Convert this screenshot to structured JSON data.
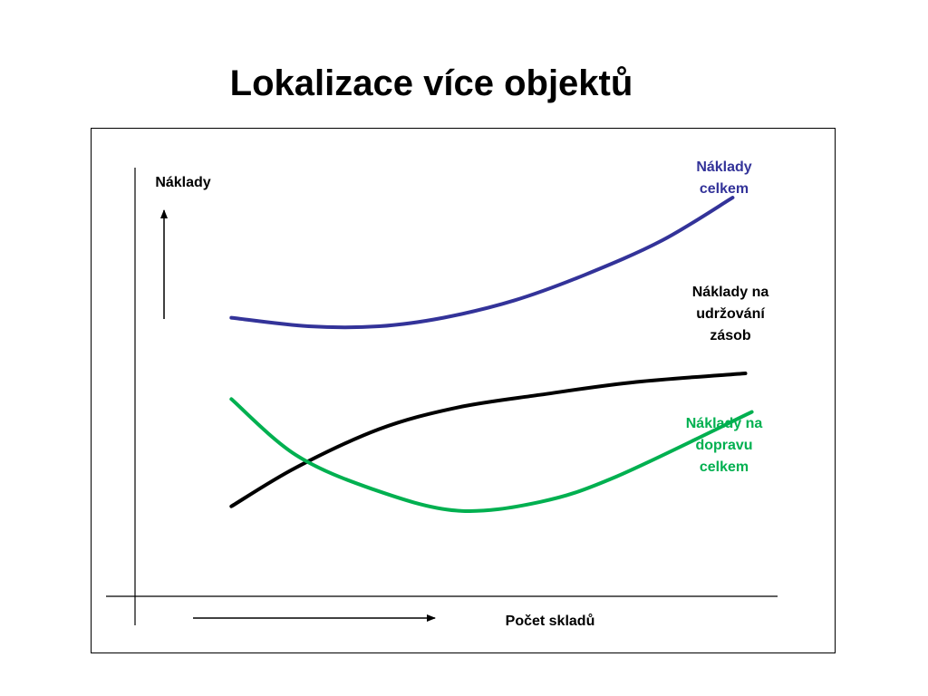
{
  "slide": {
    "title": "Lokalizace více objektů"
  },
  "chart_data": {
    "type": "line",
    "title": "Lokalizace více objektů",
    "ylabel": "Náklady",
    "xlabel": "Počet skladů",
    "grid": false,
    "legend": "direct-labels-right",
    "xlim": [
      0,
      10
    ],
    "ylim": [
      0,
      10
    ],
    "series": [
      {
        "name_lines": [
          "Náklady",
          "celkem"
        ],
        "color": "#333399",
        "x": [
          1.5,
          2.7,
          3.8,
          4.8,
          5.9,
          7.0,
          8.2,
          9.3
        ],
        "y": [
          6.5,
          6.3,
          6.3,
          6.5,
          6.9,
          7.5,
          8.3,
          9.3
        ]
      },
      {
        "name_lines": [
          "Náklady na",
          "udržování",
          "zásob"
        ],
        "color": "#000000",
        "x": [
          1.5,
          2.5,
          3.8,
          5.0,
          6.3,
          7.8,
          9.5
        ],
        "y": [
          2.1,
          3.0,
          3.9,
          4.4,
          4.7,
          5.0,
          5.2
        ]
      },
      {
        "name_lines": [
          "Náklady na",
          "dopravu",
          "celkem"
        ],
        "color": "#00b050",
        "x": [
          1.5,
          2.5,
          3.7,
          5.0,
          6.3,
          7.5,
          9.6
        ],
        "y": [
          4.6,
          3.3,
          2.5,
          2.0,
          2.2,
          2.8,
          4.3
        ]
      }
    ]
  }
}
